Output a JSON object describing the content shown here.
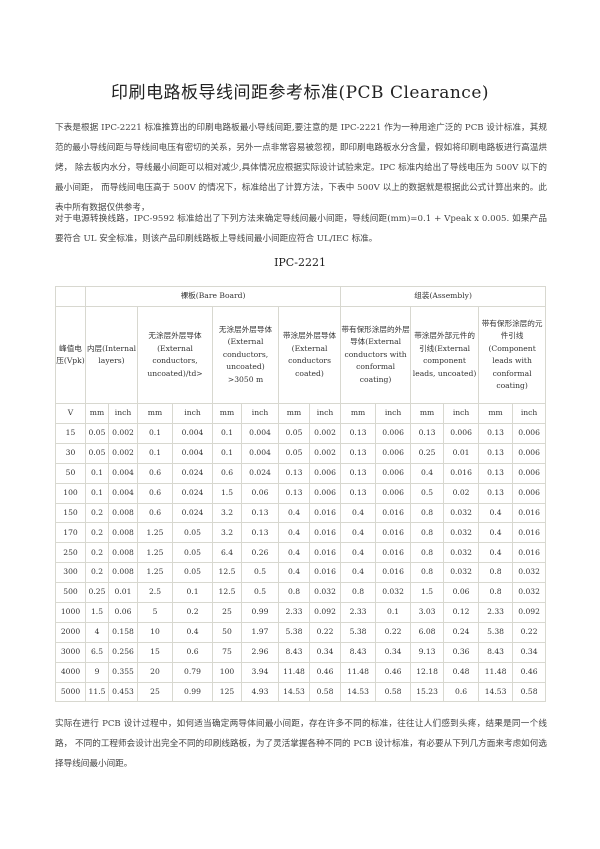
{
  "title": "印刷电路板导线间距参考标准(PCB Clearance)",
  "paragraphs": [
    "下表是根据 IPC-2221 标准推算出的印刷电路板最小导线间距,要注意的是 IPC-2221 作为一种用途广泛的 PCB 设计标准，其规范的最小导线间距与导线间电压有密切的关系，另外一点非常容易被忽视，即印刷电路板水分含量，假如将印刷电路板进行高温烘烤， 除去板内水分，导线最小间距可以相对减少,具体情况应根据实际设计试验来定。IPC 标准内给出了导线电压为 500V 以下的最小间距， 而导线间电压高于 500V 的情况下，标准给出了计算方法，下表中 500V 以上的数据就是根据此公式计算出来的。此表中所有数据仅供参考，",
    "对于电源转换线路，IPC-9592 标准给出了下列方法来确定导线间最小间距，导线间距(mm)=0.1 + Vpeak x 0.005. 如果产品要符合 UL 安全标准，则该产品印刷线路板上导线间最小间距应符合 UL/IEC 标准。",
    "实际在进行 PCB 设计过程中，如何适当确定两导体间最小间距，存在许多不同的标准，往往让人们感到头疼，结果是同一个线路， 不同的工程师会设计出完全不同的印刷线路板，为了灵活掌握各种不同的 PCB 设计标准，有必要从下列几方面来考虑如何选择导线间最小间距。"
  ],
  "table": {
    "caption": "IPC-2221",
    "group_bare": "裸板(Bare Board)",
    "group_assembly": "组装(Assembly)",
    "voltage_header": "峰值电压(Vpk)",
    "column_headers": [
      "内层(Internal layers)",
      "无涂层外层导体(External conductors, uncoated)/td>",
      "无涂层外层导体(External conductors, uncoated) >3050 m",
      "带涂层外层导体(External conductors coated)",
      "带有保形涂层的外层导体(External conductors with conformal coating)",
      "带涂层外部元件的引线(External component leads, uncoated)",
      "带有保形涂层的元件引线(Component leads with conformal coating)"
    ],
    "unit_v": "V",
    "unit_mm": "mm",
    "unit_inch": "inch",
    "rows": [
      [
        "15",
        "0.05",
        "0.002",
        "0.1",
        "0.004",
        "0.1",
        "0.004",
        "0.05",
        "0.002",
        "0.13",
        "0.006",
        "0.13",
        "0.006",
        "0.13",
        "0.006"
      ],
      [
        "30",
        "0.05",
        "0.002",
        "0.1",
        "0.004",
        "0.1",
        "0.004",
        "0.05",
        "0.002",
        "0.13",
        "0.006",
        "0.25",
        "0.01",
        "0.13",
        "0.006"
      ],
      [
        "50",
        "0.1",
        "0.004",
        "0.6",
        "0.024",
        "0.6",
        "0.024",
        "0.13",
        "0.006",
        "0.13",
        "0.006",
        "0.4",
        "0.016",
        "0.13",
        "0.006"
      ],
      [
        "100",
        "0.1",
        "0.004",
        "0.6",
        "0.024",
        "1.5",
        "0.06",
        "0.13",
        "0.006",
        "0.13",
        "0.006",
        "0.5",
        "0.02",
        "0.13",
        "0.006"
      ],
      [
        "150",
        "0.2",
        "0.008",
        "0.6",
        "0.024",
        "3.2",
        "0.13",
        "0.4",
        "0.016",
        "0.4",
        "0.016",
        "0.8",
        "0.032",
        "0.4",
        "0.016"
      ],
      [
        "170",
        "0.2",
        "0.008",
        "1.25",
        "0.05",
        "3.2",
        "0.13",
        "0.4",
        "0.016",
        "0.4",
        "0.016",
        "0.8",
        "0.032",
        "0.4",
        "0.016"
      ],
      [
        "250",
        "0.2",
        "0.008",
        "1.25",
        "0.05",
        "6.4",
        "0.26",
        "0.4",
        "0.016",
        "0.4",
        "0.016",
        "0.8",
        "0.032",
        "0.4",
        "0.016"
      ],
      [
        "300",
        "0.2",
        "0.008",
        "1.25",
        "0.05",
        "12.5",
        "0.5",
        "0.4",
        "0.016",
        "0.4",
        "0.016",
        "0.8",
        "0.032",
        "0.8",
        "0.032"
      ],
      [
        "500",
        "0.25",
        "0.01",
        "2.5",
        "0.1",
        "12.5",
        "0.5",
        "0.8",
        "0.032",
        "0.8",
        "0.032",
        "1.5",
        "0.06",
        "0.8",
        "0.032"
      ],
      [
        "1000",
        "1.5",
        "0.06",
        "5",
        "0.2",
        "25",
        "0.99",
        "2.33",
        "0.092",
        "2.33",
        "0.1",
        "3.03",
        "0.12",
        "2.33",
        "0.092"
      ],
      [
        "2000",
        "4",
        "0.158",
        "10",
        "0.4",
        "50",
        "1.97",
        "5.38",
        "0.22",
        "5.38",
        "0.22",
        "6.08",
        "0.24",
        "5.38",
        "0.22"
      ],
      [
        "3000",
        "6.5",
        "0.256",
        "15",
        "0.6",
        "75",
        "2.96",
        "8.43",
        "0.34",
        "8.43",
        "0.34",
        "9.13",
        "0.36",
        "8.43",
        "0.34"
      ],
      [
        "4000",
        "9",
        "0.355",
        "20",
        "0.79",
        "100",
        "3.94",
        "11.48",
        "0.46",
        "11.48",
        "0.46",
        "12.18",
        "0.48",
        "11.48",
        "0.46"
      ],
      [
        "5000",
        "11.5",
        "0.453",
        "25",
        "0.99",
        "125",
        "4.93",
        "14.53",
        "0.58",
        "14.53",
        "0.58",
        "15.23",
        "0.6",
        "14.53",
        "0.58"
      ]
    ]
  }
}
